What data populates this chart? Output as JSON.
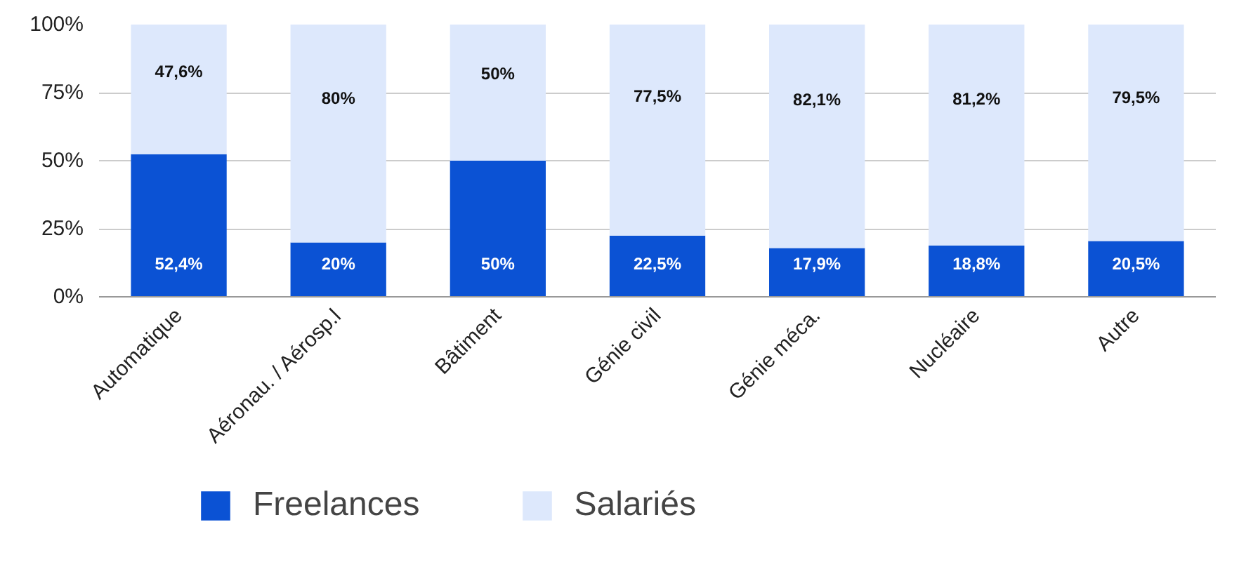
{
  "chart_data": {
    "type": "bar",
    "stacked": true,
    "categories": [
      "Automatique",
      "Aéronau. / Aérosp.l",
      "Bâtiment",
      "Génie civil",
      "Génie méca.",
      "Nucléaire",
      "Autre"
    ],
    "series": [
      {
        "name": "Freelances",
        "color": "#0b52d4",
        "values": [
          52.4,
          20,
          50,
          22.5,
          17.9,
          18.8,
          20.5
        ],
        "value_labels": [
          "52,4%",
          "20%",
          "50%",
          "22,5%",
          "17,9%",
          "18,8%",
          "20,5%"
        ]
      },
      {
        "name": "Salariés",
        "color": "#dde8fc",
        "values": [
          47.6,
          80,
          50,
          77.5,
          82.1,
          81.2,
          79.5
        ],
        "value_labels": [
          "47,6%",
          "80%",
          "50%",
          "77,5%",
          "82,1%",
          "81,2%",
          "79,5%"
        ]
      }
    ],
    "ylim": [
      0,
      100
    ],
    "yticks": [
      {
        "value": 0,
        "label": "0%"
      },
      {
        "value": 25,
        "label": "25%"
      },
      {
        "value": 50,
        "label": "50%"
      },
      {
        "value": 75,
        "label": "75%"
      },
      {
        "value": 100,
        "label": "100%"
      }
    ],
    "grid": "y",
    "legend": "bottom"
  }
}
